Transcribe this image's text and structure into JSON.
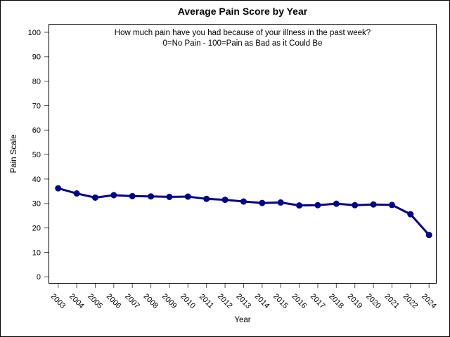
{
  "figure": {
    "title": "Average Pain Score by Year",
    "subtitle_line1": "How much pain have you had because of your illness in the past week?",
    "subtitle_line2": "0=No Pain - 100=Pain as Bad as it Could Be",
    "xlabel": "Year",
    "ylabel": "Pain Scale"
  },
  "chart_data": {
    "type": "line",
    "title": "Average Pain Score by Year",
    "subtitle": [
      "How much pain have you had because of your illness in the past week?",
      "0=No Pain - 100=Pain as Bad as it Could Be"
    ],
    "xlabel": "Year",
    "ylabel": "Pain Scale",
    "categories": [
      "2003",
      "2004",
      "2005",
      "2006",
      "2007",
      "2008",
      "2009",
      "2010",
      "2011",
      "2012",
      "2013",
      "2014",
      "2015",
      "2016",
      "2017",
      "2018",
      "2019",
      "2020",
      "2021",
      "2022",
      "2024"
    ],
    "values": [
      36.2,
      34.1,
      32.4,
      33.4,
      33.0,
      32.9,
      32.7,
      32.8,
      31.9,
      31.5,
      30.8,
      30.2,
      30.4,
      29.2,
      29.3,
      29.9,
      29.3,
      29.6,
      29.4,
      25.6,
      17.1
    ],
    "ylim": [
      0,
      100
    ],
    "y_ticks": [
      0,
      10,
      20,
      30,
      40,
      50,
      60,
      70,
      80,
      90,
      100
    ],
    "legend": "none",
    "grid": "off",
    "line_color": "#00008B",
    "marker": "filled-circle",
    "axis_color": "#000000",
    "tick_color": "#555555"
  }
}
